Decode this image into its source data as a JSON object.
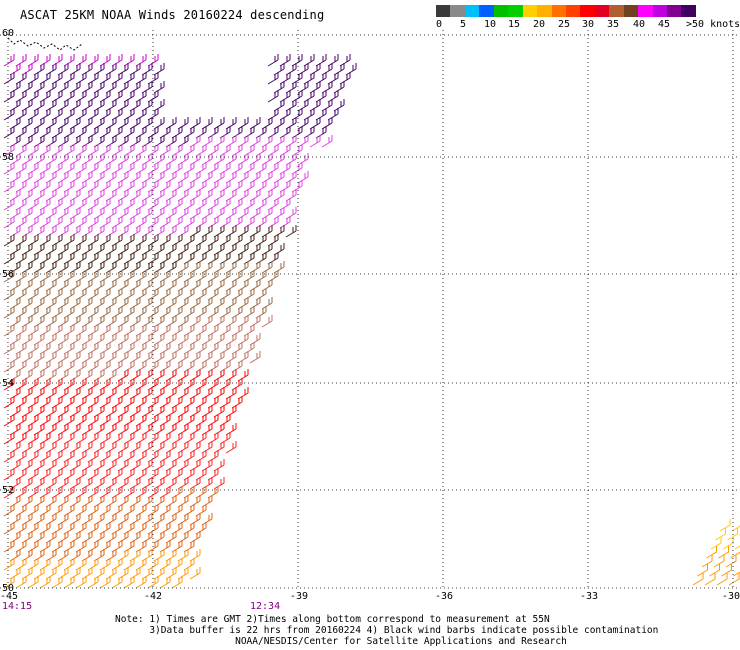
{
  "title": "ASCAT 25KM NOAA Winds 20160224 descending",
  "legend": {
    "labels": [
      "0",
      "5",
      "10",
      "15",
      "20",
      "25",
      "30",
      "35",
      "40",
      "45",
      ">50 knots"
    ],
    "colors": [
      "#3a3a3a",
      "#8a8a8a",
      "#00bfff",
      "#0060ff",
      "#00c000",
      "#00d000",
      "#ffd000",
      "#ffb000",
      "#ff7000",
      "#ff4000",
      "#ff0000",
      "#e00020",
      "#b06030",
      "#704020",
      "#ff00ff",
      "#c000e0",
      "#800090",
      "#400060"
    ]
  },
  "map": {
    "lat_labels": [
      "60",
      "58",
      "56",
      "54",
      "52",
      "50"
    ],
    "lon_labels": [
      "-45",
      "-42",
      "-39",
      "-36",
      "-33",
      "-30"
    ],
    "time_labels": [
      "14:15",
      "12:34"
    ]
  },
  "notes": [
    "Note: 1) Times are GMT 2)Times along bottom correspond to measurement at 55N",
    "      3)Data buffer is 22 hrs from 20160224 4) Black wind barbs indicate possible contamination",
    "                     NOAA/NESDIS/Center for Satellite Applications and Research"
  ]
}
